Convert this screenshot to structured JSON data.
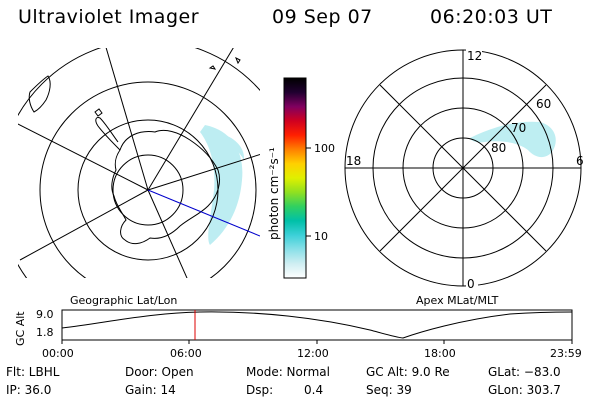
{
  "header": {
    "instrument": "Ultraviolet Imager",
    "date": "09 Sep 07",
    "time": "06:20:03 UT"
  },
  "colorbar": {
    "unit_label": "photon cm⁻²s⁻¹",
    "ticks": [
      "100",
      "10"
    ]
  },
  "panels": {
    "geographic_label": "Geographic Lat/Lon",
    "apex_label": "Apex MLat/MLT"
  },
  "polar_plot": {
    "mlt_labels": {
      "top": "12",
      "bottom": "0",
      "left": "18",
      "right": "6"
    },
    "lat_labels": [
      "60",
      "70",
      "80"
    ]
  },
  "timeline": {
    "ylabel": "GC Alt",
    "y_ticks": [
      "9.0",
      "1.8"
    ],
    "x_ticks": [
      "00:00",
      "06:00",
      "12:00",
      "18:00",
      "23:59"
    ],
    "current_time_marker": "06:20"
  },
  "info": {
    "filter": "Flt: LBHL",
    "ip": "IP: 36.0",
    "door": "Door: Open",
    "gain": "Gain: 14",
    "mode": "Mode: Normal",
    "dsp_label": "Dsp:",
    "dsp_value": "0.4",
    "gc_alt": "GC Alt: 9.0 Re",
    "seq": "Seq: 39",
    "glat": "GLat: −83.0",
    "glon": "GLon: 303.7"
  },
  "colors": {
    "colorbar": [
      "#ffffff",
      "#cfeef2",
      "#8ae0e8",
      "#3cd0d8",
      "#00c0a8",
      "#30d060",
      "#90e020",
      "#e0f000",
      "#ffd000",
      "#ff8000",
      "#ff2000",
      "#d00020",
      "#800060",
      "#200030",
      "#000000"
    ],
    "auroral_emission": "#a8e8ee",
    "orbit_track": "#0000cc",
    "time_marker": "#dd0000"
  }
}
